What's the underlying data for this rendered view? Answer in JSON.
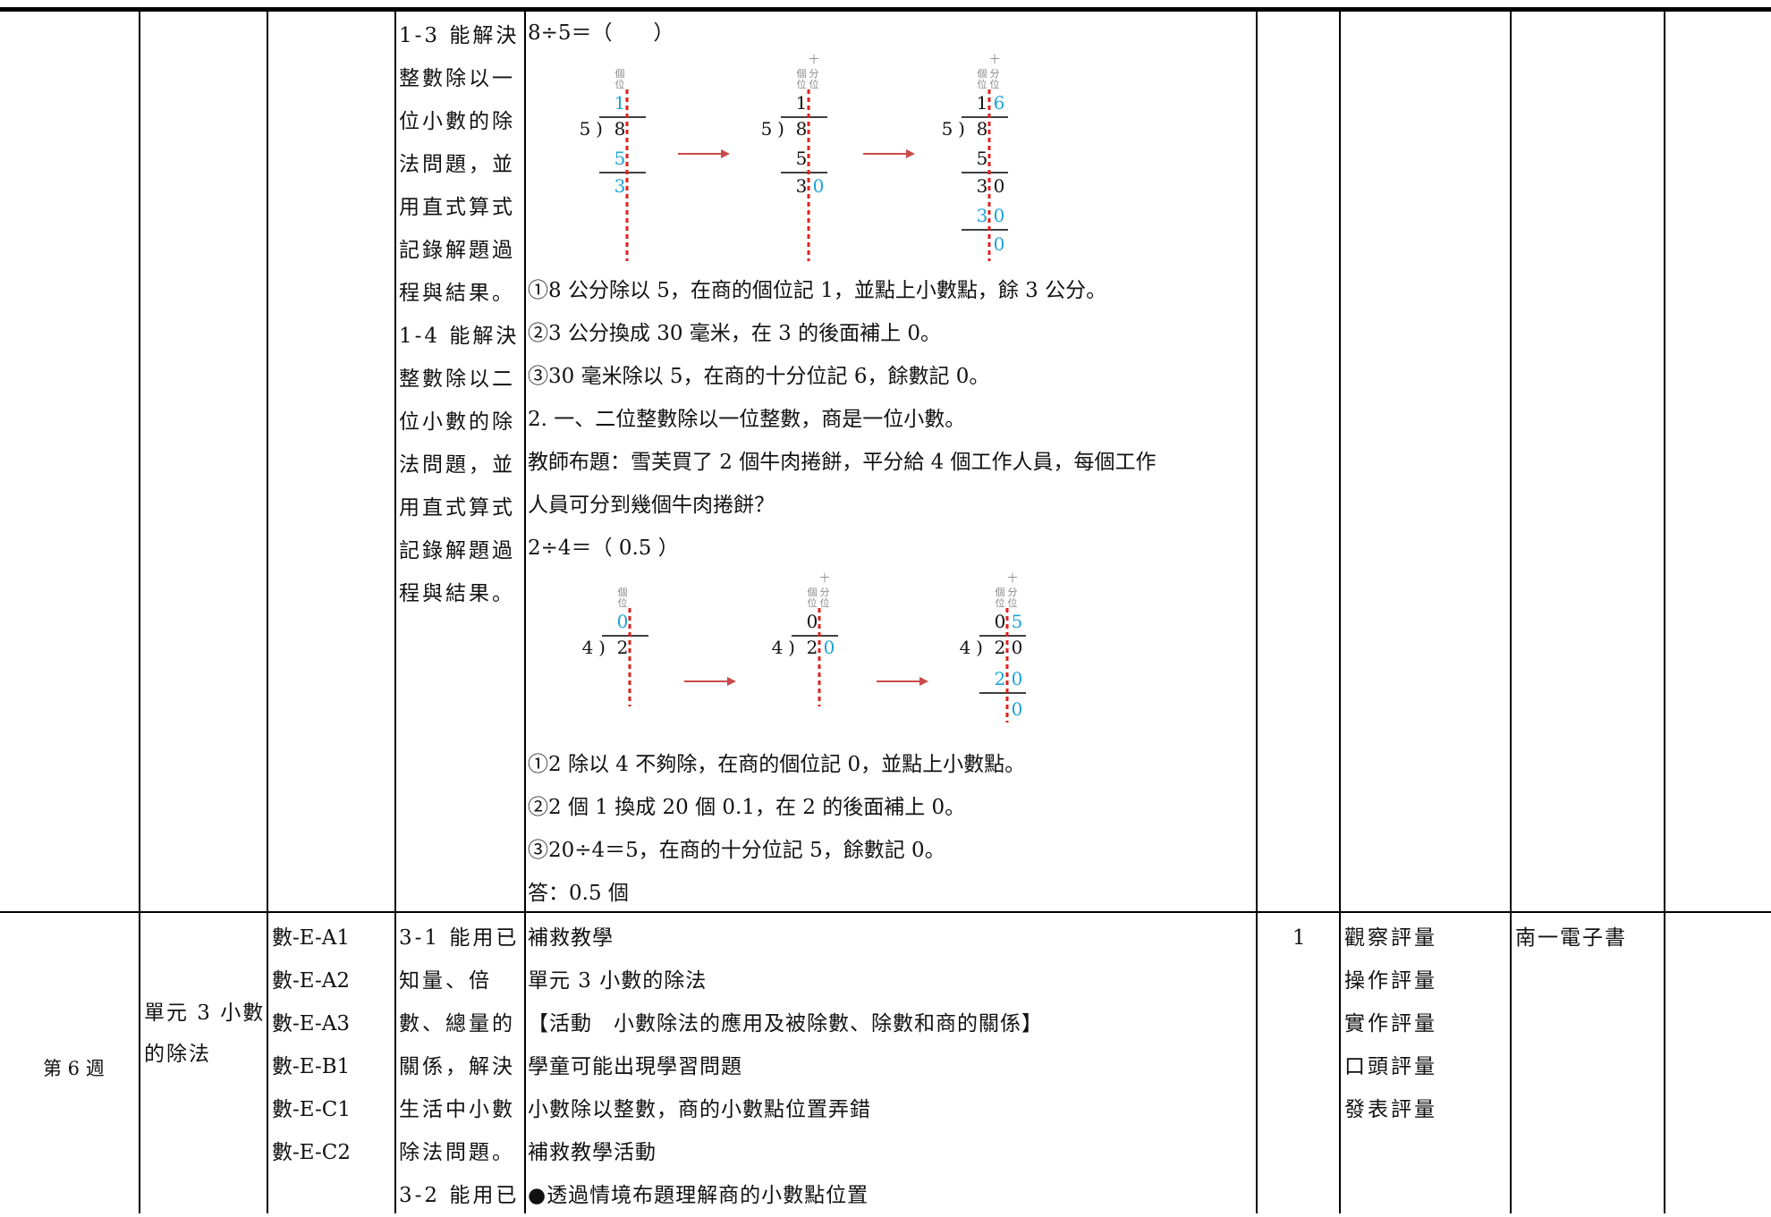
{
  "row1": {
    "objectives": [
      "1-3 能解決",
      "整數除以一",
      "位小數的除",
      "法問題，並",
      "用直式算式",
      "記錄解題過",
      "程與結果。",
      "1-4 能解決",
      "整數除以二",
      "位小數的除",
      "法問題，並",
      "用直式算式",
      "記錄解題過",
      "程與結果。"
    ],
    "example1": {
      "equation": "8÷5＝（　　）",
      "header_ones": "個位",
      "header_tenths": "十分位",
      "digits": {
        "q1": "1",
        "q2": "6",
        "dividend": "8",
        "divisor": "5",
        "sub1": "5",
        "rem1": "3",
        "rem_ext": "0",
        "sub2": "3",
        "sub2b": "0",
        "rem2": "0"
      },
      "divsign": ")"
    },
    "steps1": [
      "①8 公分除以 5，在商的個位記 1，並點上小數點，餘 3 公分。",
      "②3 公分換成 30 毫米，在 3 的後面補上 0。",
      "③30 毫米除以 5，在商的十分位記 6，餘數記 0。"
    ],
    "section2_title": "2. 一、二位整數除以一位整數，商是一位小數。",
    "problem2": [
      "教師布題：雪芙買了 2 個牛肉捲餅，平分給 4 個工作人員，每個工作",
      "人員可分到幾個牛肉捲餅？"
    ],
    "example2": {
      "equation": "2÷4＝（ 0.5 ）",
      "header_ones": "個位",
      "header_tenths": "十分位",
      "digits": {
        "q1": "0",
        "q2": "5",
        "dividend": "2",
        "divisor": "4",
        "ext": "0",
        "sub1": "2",
        "sub1b": "0",
        "rem": "0"
      },
      "divsign": ")"
    },
    "steps2": [
      "①2 除以 4 不夠除，在商的個位記 0，並點上小數點。",
      "②2 個 1 換成 20 個 0.1，在 2 的後面補上 0。",
      "③20÷4＝5，在商的十分位記 5，餘數記 0。"
    ],
    "answer": "答：0.5 個"
  },
  "row2": {
    "week": "第 6 週",
    "unit": [
      "單元 3 小數",
      "的除法"
    ],
    "codes": [
      "數-E-A1",
      "數-E-A2",
      "數-E-A3",
      "數-E-B1",
      "數-E-C1",
      "數-E-C2"
    ],
    "objectives": [
      "3-1 能用已",
      "知量、倍",
      "數、總量的",
      "關係，解決",
      "生活中小數",
      "除法問題。",
      "3-2 能用已"
    ],
    "content": [
      "補救教學",
      "單元 3 小數的除法",
      "【活動　小數除法的應用及被除數、除數和商的關係】",
      "學童可能出現學習問題",
      "小數除以整數，商的小數點位置弄錯",
      "補救教學活動",
      "●透過情境布題理解商的小數點位置"
    ],
    "periods": "1",
    "assessments": [
      "觀察評量",
      "操作評量",
      "實作評量",
      "口頭評量",
      "發表評量"
    ],
    "resource": "南一電子書"
  },
  "colors": {
    "blue": "#1aa3d9",
    "red": "#e0201c",
    "arrow": "#c94a4a",
    "gray": "#888888"
  }
}
